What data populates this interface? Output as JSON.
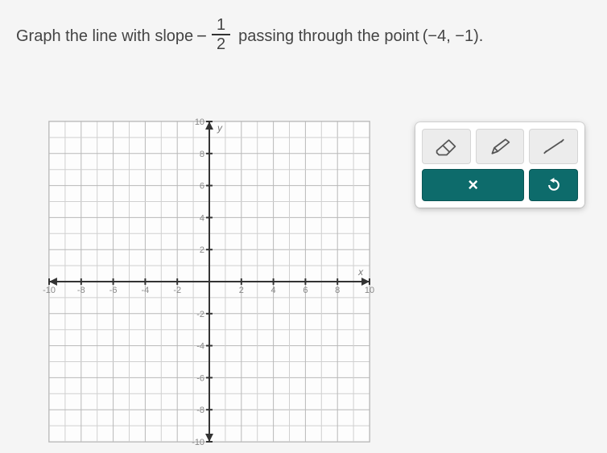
{
  "question": {
    "prefix": "Graph the line with slope",
    "slope_sign": "−",
    "slope_num": "1",
    "slope_den": "2",
    "middle": "passing through the point",
    "point": "(−4, −1).",
    "text_color": "#444444",
    "font_size": 20
  },
  "graph": {
    "type": "cartesian-grid",
    "xlim": [
      -10,
      10
    ],
    "ylim": [
      -10,
      10
    ],
    "grid_step": 1,
    "major_step": 2,
    "tick_label_step": 2,
    "x_ticks": [
      -10,
      -8,
      -6,
      -4,
      -2,
      2,
      4,
      6,
      8,
      10
    ],
    "y_ticks": [
      -10,
      -8,
      -6,
      -4,
      -2,
      2,
      4,
      6,
      8,
      10
    ],
    "x_axis_label": "x",
    "y_axis_label": "y",
    "background_color": "#fdfdfd",
    "gridline_color": "#d0d0d0",
    "gridline_major_color": "#b8b8b8",
    "axis_color": "#333333",
    "tick_label_color": "#888888",
    "tick_fontsize": 11
  },
  "toolbar": {
    "eraser_label": "eraser",
    "pencil_label": "pencil",
    "line_label": "line",
    "clear_label": "×",
    "undo_label": "undo",
    "teal_color": "#0d6b6b",
    "light_bg": "#ececec"
  }
}
